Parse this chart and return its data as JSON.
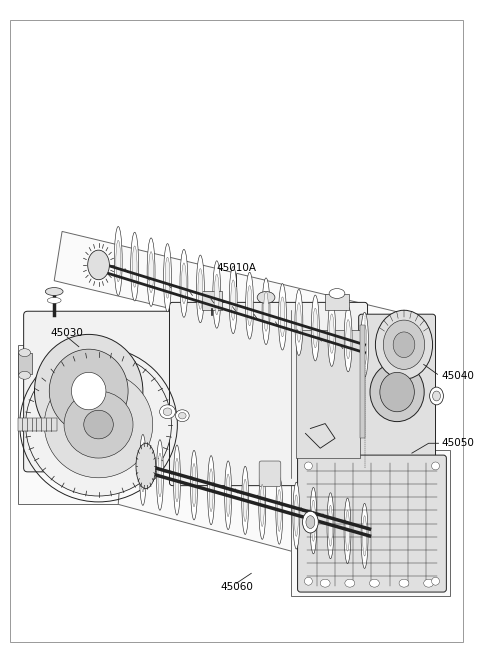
{
  "bg_color": "#ffffff",
  "border_color": "#555555",
  "line_color": "#222222",
  "label_color": "#000000",
  "fig_width": 4.8,
  "fig_height": 6.55,
  "dpi": 100,
  "label_fontsize": 7.5,
  "lw": 0.7
}
